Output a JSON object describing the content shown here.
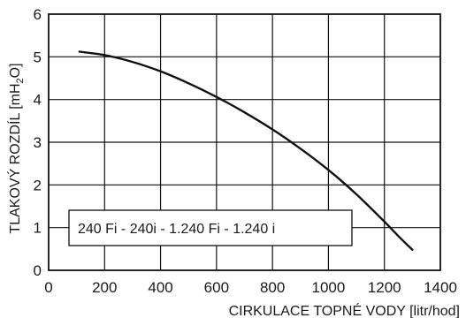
{
  "chart_data": {
    "type": "line",
    "xlabel": "CIRKULACE  TOPNÉ VODY [litr/hod]",
    "ylabel_main": "TLAKOVÝ ROZDÍL  [mH",
    "ylabel_sub": "2",
    "ylabel_end": "O]",
    "xlim": [
      0,
      1400
    ],
    "ylim": [
      0,
      6
    ],
    "x_ticks": [
      0,
      200,
      400,
      600,
      800,
      1000,
      1200,
      1400
    ],
    "y_ticks": [
      0,
      1,
      2,
      3,
      4,
      5,
      6
    ],
    "grid": true,
    "legend_position": "lower-left inside plot",
    "series": [
      {
        "name": "240 Fi - 240i - 1.240 Fi  - 1.240 i",
        "x": [
          110,
          200,
          300,
          400,
          500,
          600,
          700,
          800,
          900,
          1000,
          1100,
          1200,
          1250,
          1300
        ],
        "y": [
          5.12,
          5.04,
          4.88,
          4.66,
          4.38,
          4.06,
          3.7,
          3.3,
          2.85,
          2.35,
          1.78,
          1.14,
          0.8,
          0.48
        ]
      }
    ],
    "colors": {
      "line": "#111111",
      "grid": "#111111",
      "text": "#1a1a1a"
    }
  }
}
